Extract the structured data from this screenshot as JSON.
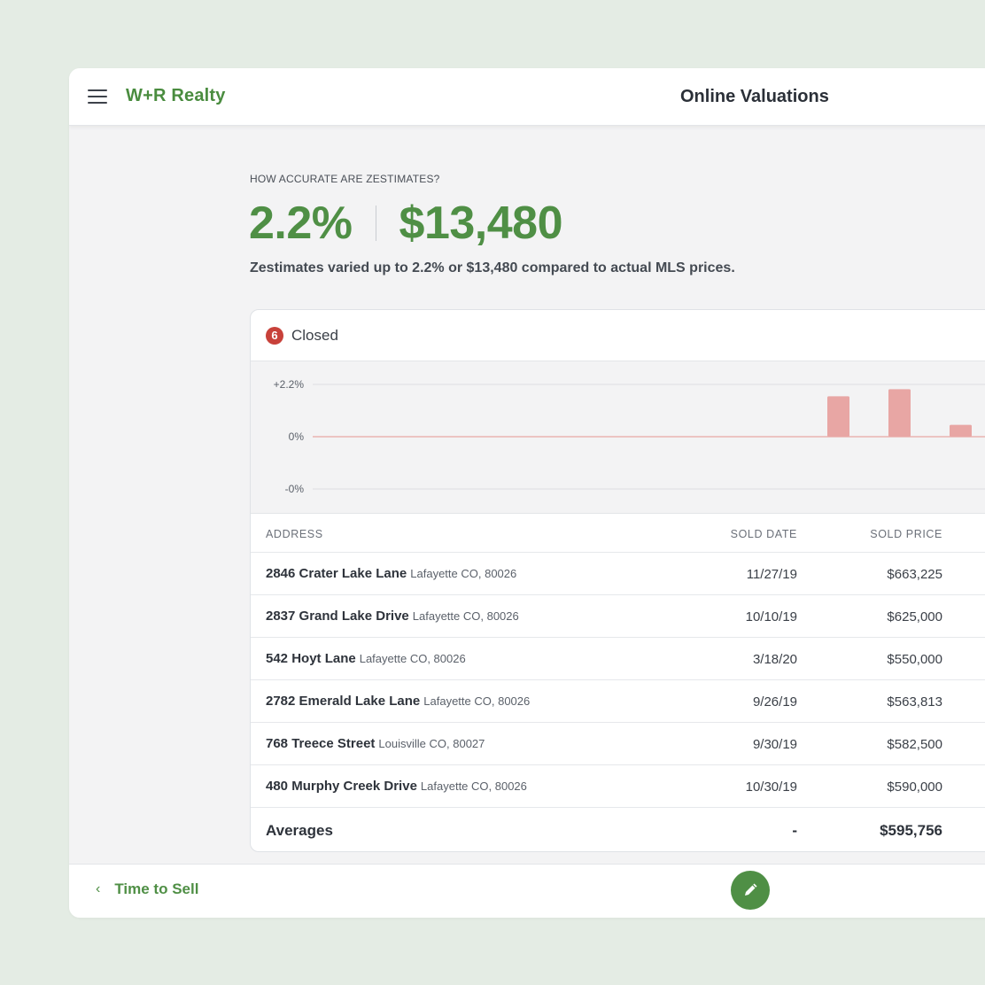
{
  "header": {
    "brand": "W+R Realty",
    "title": "Online Valuations"
  },
  "intro": {
    "eyebrow": "HOW ACCURATE ARE ZESTIMATES?",
    "stat_percent": "2.2%",
    "stat_amount": "$13,480",
    "summary": "Zestimates varied up to 2.2% or $13,480 compared to actual MLS prices."
  },
  "card": {
    "count": "6",
    "title": "Closed"
  },
  "chart_data": {
    "type": "bar",
    "y_ticks": [
      "+2.2%",
      "0%",
      "-0%"
    ],
    "ylim": [
      -2.2,
      2.2
    ],
    "values": [
      1.7,
      2.0,
      0.5
    ],
    "bar_color": "#e8a6a4",
    "zero_line_color": "#eab4b2"
  },
  "table": {
    "columns": [
      "ADDRESS",
      "SOLD DATE",
      "SOLD PRICE"
    ],
    "rows": [
      {
        "street": "2846 Crater Lake Lane",
        "city": "Lafayette CO, 80026",
        "date": "11/27/19",
        "price": "$663,225"
      },
      {
        "street": "2837 Grand Lake Drive",
        "city": "Lafayette CO, 80026",
        "date": "10/10/19",
        "price": "$625,000"
      },
      {
        "street": "542 Hoyt Lane",
        "city": "Lafayette CO, 80026",
        "date": "3/18/20",
        "price": "$550,000"
      },
      {
        "street": "2782 Emerald Lake Lane",
        "city": "Lafayette CO, 80026",
        "date": "9/26/19",
        "price": "$563,813"
      },
      {
        "street": "768 Treece Street",
        "city": "Louisville CO, 80027",
        "date": "9/30/19",
        "price": "$582,500"
      },
      {
        "street": "480 Murphy Creek Drive",
        "city": "Lafayette CO, 80026",
        "date": "10/30/19",
        "price": "$590,000"
      }
    ],
    "averages": {
      "label": "Averages",
      "date": "-",
      "price": "$595,756"
    }
  },
  "footer": {
    "back_label": "Time to Sell",
    "back_icon": "chevron-left-icon",
    "fab_icon": "pencil-icon"
  },
  "colors": {
    "brand_green": "#4f8f45",
    "badge_red": "#c8413a",
    "app_background": "#e4ece4"
  }
}
